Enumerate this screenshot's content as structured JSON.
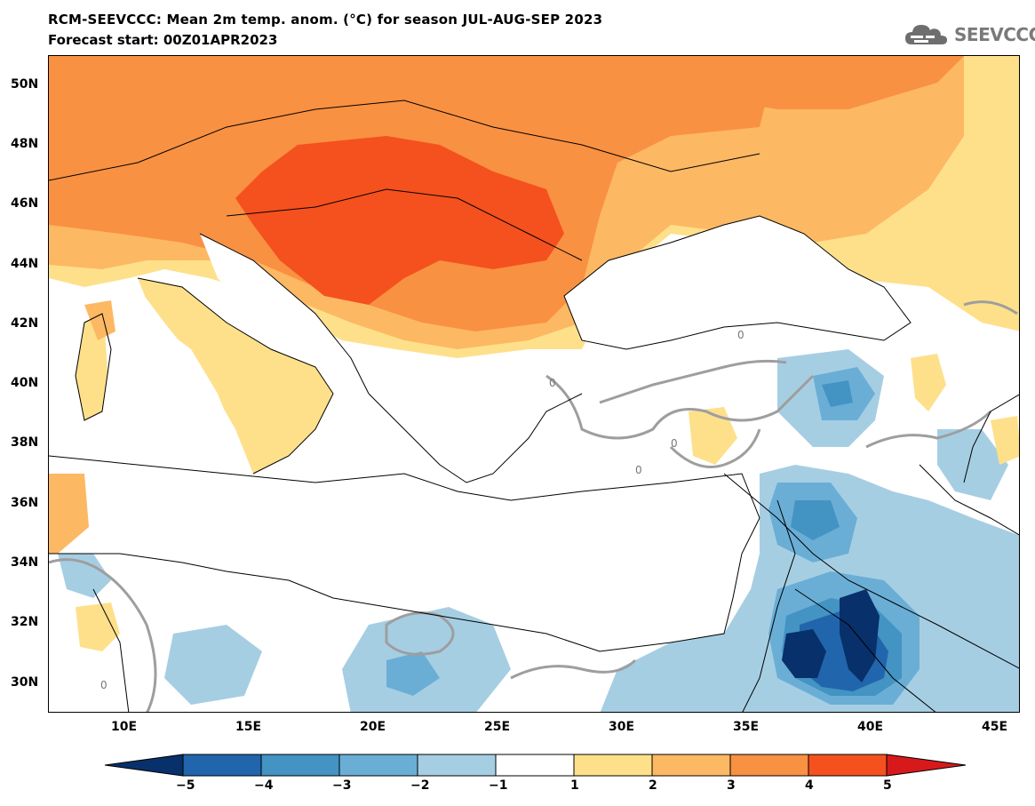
{
  "header": {
    "title": "RCM-SEEVCCC: Mean 2m temp. anom. (°C) for season JUL-AUG-SEP 2023",
    "subtitle": "Forecast start: 00Z01APR2023"
  },
  "logo": {
    "text": "SEEVCCC",
    "icon": "cloud-logo-icon"
  },
  "map": {
    "lat_labels": [
      "50N",
      "48N",
      "46N",
      "44N",
      "42N",
      "40N",
      "38N",
      "36N",
      "34N",
      "32N",
      "30N"
    ],
    "lon_labels": [
      "10E",
      "15E",
      "20E",
      "25E",
      "30E",
      "35E",
      "40E",
      "45E"
    ],
    "contour_zero_label": "0"
  },
  "colorbar": {
    "labels": [
      "−5",
      "−4",
      "−3",
      "−2",
      "−1",
      "1",
      "2",
      "3",
      "4",
      "5"
    ],
    "colors": {
      "neg5": "#08306b",
      "neg4": "#2166ac",
      "neg3": "#4393c3",
      "neg2": "#6aaed6",
      "neg1": "#a6cee3",
      "zero": "#ffffff",
      "pos1": "#fee08b",
      "pos2": "#fdb863",
      "pos3": "#f99142",
      "pos4": "#f4511e",
      "pos5": "#d7191c"
    }
  }
}
